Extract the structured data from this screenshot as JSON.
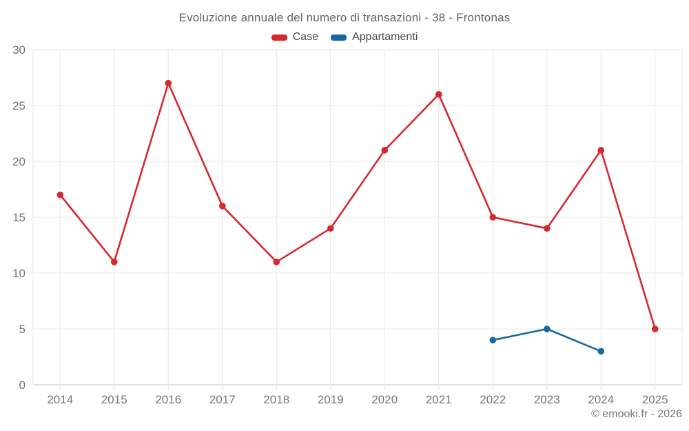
{
  "chart_data": {
    "type": "line",
    "title": "Evoluzione annuale del numero di transazioni - 38 - Frontonas",
    "categories": [
      "2014",
      "2015",
      "2016",
      "2017",
      "2018",
      "2019",
      "2020",
      "2021",
      "2022",
      "2023",
      "2024",
      "2025"
    ],
    "series": [
      {
        "name": "Case",
        "color": "#d6282e",
        "values": [
          17,
          11,
          27,
          16,
          11,
          14,
          21,
          26,
          15,
          14,
          21,
          5
        ]
      },
      {
        "name": "Appartamenti",
        "color": "#17699f",
        "values": [
          null,
          null,
          null,
          null,
          null,
          null,
          null,
          null,
          4,
          5,
          3,
          null
        ]
      }
    ],
    "xlabel": "",
    "ylabel": "",
    "ylim": [
      0,
      30
    ],
    "y_ticks": [
      0,
      5,
      10,
      15,
      20,
      25,
      30
    ],
    "grid": true,
    "legend_position": "top"
  },
  "footer": {
    "credit": "© emooki.fr - 2026"
  },
  "colors": {
    "grid": "#e7e7e7",
    "axis_line": "#c6c6c6",
    "tick_label": "#757575",
    "title_text": "#5f6368",
    "legend_text": "#4a4a4a",
    "background": "#ffffff"
  }
}
